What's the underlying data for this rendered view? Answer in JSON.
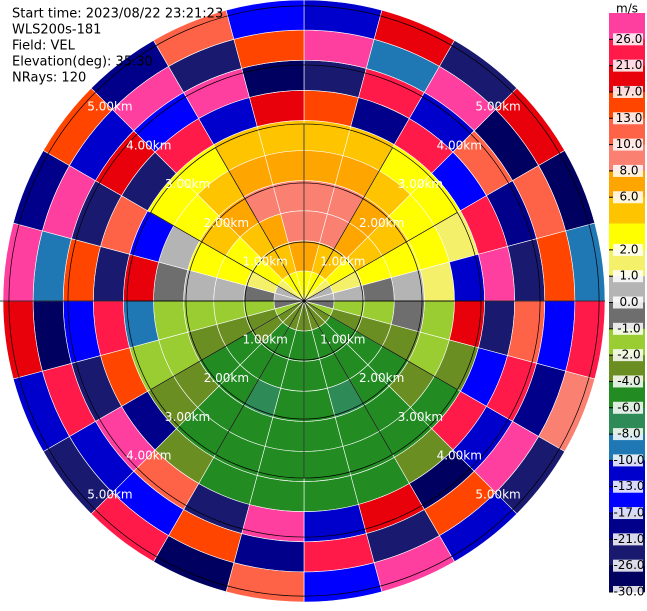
{
  "chart_data": {
    "type": "ppi",
    "info": [
      "Start time: 2023/08/22 23:21:23",
      "WLS200s-181",
      "Field: VEL",
      "Elevation(deg): 35.30",
      "NRays: 120"
    ],
    "rlim": [
      0,
      5.1
    ],
    "range_rings": [
      {
        "value": 1,
        "label": "1.00km"
      },
      {
        "value": 2,
        "label": "2.00km"
      },
      {
        "value": 3,
        "label": "3.00km"
      },
      {
        "value": 4,
        "label": "4.00km"
      },
      {
        "value": 5,
        "label": "5.00km"
      }
    ],
    "values": [
      [
        3,
        7,
        9,
        9,
        7,
        5,
        14,
        -22,
        27,
        -11
      ],
      [
        3,
        5,
        9,
        9,
        7,
        5,
        -19,
        25,
        -9,
        18
      ],
      [
        2.5,
        5,
        7,
        7,
        5,
        3,
        22,
        -13,
        28,
        -24
      ],
      [
        1.5,
        3,
        5,
        5,
        3,
        3,
        -15,
        12,
        -27,
        20
      ],
      [
        0.5,
        1.5,
        3,
        3,
        3,
        1.5,
        24,
        -18,
        11,
        -28
      ],
      [
        0.5,
        0.5,
        -0.5,
        0.5,
        1.5,
        -11,
        27,
        -23,
        16,
        -9
      ],
      [
        -0.5,
        -1.5,
        -1.5,
        -0.5,
        -1.5,
        19,
        -26,
        12,
        -16,
        23
      ],
      [
        -1.5,
        -3,
        -3,
        -3,
        -1.5,
        -3,
        -14,
        25,
        -20,
        9
      ],
      [
        -3,
        -5,
        -5,
        -5,
        -3,
        -5,
        21,
        -12,
        28,
        -25
      ],
      [
        -3,
        -5,
        -5,
        -5,
        -5,
        -5,
        -3,
        -27,
        15,
        -11
      ],
      [
        -3,
        -5,
        -5,
        -7,
        -5,
        -5,
        -5,
        18,
        -23,
        27
      ],
      [
        -3,
        -5,
        -5,
        -5,
        -5,
        -5,
        -5,
        -12,
        24,
        -16
      ],
      [
        -3,
        -5,
        -5,
        -5,
        -5,
        -5,
        -5,
        26,
        -19,
        11
      ],
      [
        -3,
        -5,
        -5,
        -7,
        -5,
        -5,
        -5,
        -24,
        14,
        -28
      ],
      [
        -3,
        -5,
        -5,
        -5,
        -5,
        -5,
        -3,
        12,
        -15,
        22
      ],
      [
        -3,
        -3,
        -5,
        -5,
        -3,
        -3,
        -20,
        27,
        -11,
        -25
      ],
      [
        -1.5,
        -3,
        -3,
        -3,
        -1.5,
        -1.5,
        16,
        -22,
        25,
        -13
      ],
      [
        -0.5,
        -1.5,
        -1.5,
        -1.5,
        -1.5,
        -9,
        24,
        -17,
        -28,
        19
      ],
      [
        0.5,
        -0.5,
        0.5,
        0.5,
        -0.5,
        20,
        -26,
        13,
        -10,
        27
      ],
      [
        0.5,
        1.5,
        3,
        3,
        0.5,
        -14,
        11,
        -23,
        26,
        -18
      ],
      [
        1.5,
        3,
        3,
        5,
        3,
        3,
        -25,
        19,
        -12,
        15
      ],
      [
        2.5,
        5,
        5,
        7,
        5,
        3,
        23,
        -16,
        28,
        -21
      ],
      [
        3,
        5,
        7,
        9,
        7,
        5,
        -11,
        26,
        -24,
        12
      ],
      [
        3,
        7,
        9,
        9,
        7,
        5,
        18,
        -27,
        14,
        -15
      ]
    ],
    "colorbar": {
      "title": "m/s",
      "levels": [
        30,
        26,
        21,
        17,
        13,
        10,
        8,
        6,
        4,
        2,
        1,
        0,
        -1,
        -2,
        -4,
        -6,
        -8,
        -10,
        -13,
        -17,
        -21,
        -26,
        -30
      ],
      "colors": [
        "#ff3fa0",
        "#ff1a4a",
        "#e8000b",
        "#ff4500",
        "#ff6347",
        "#fa8072",
        "#ffa500",
        "#ffc400",
        "#ffff00",
        "#f5f06a",
        "#b4b4b4",
        "#6e6e6e",
        "#9acd32",
        "#6b8e23",
        "#228b22",
        "#2e8b57",
        "#1f77b4",
        "#0000cd",
        "#0000ff",
        "#00008b",
        "#191970",
        "#000060"
      ],
      "ticks": [
        {
          "value": 26,
          "label": "26.0"
        },
        {
          "value": 21,
          "label": "21.0"
        },
        {
          "value": 17,
          "label": "17.0"
        },
        {
          "value": 13,
          "label": "13.0"
        },
        {
          "value": 10,
          "label": "10.0"
        },
        {
          "value": 8,
          "label": "8.0"
        },
        {
          "value": 6,
          "label": "6.0"
        },
        {
          "value": 2,
          "label": "2.0"
        },
        {
          "value": 1,
          "label": "1.0"
        },
        {
          "value": 0,
          "label": "0.0"
        },
        {
          "value": -1,
          "label": "-1.0"
        },
        {
          "value": -2,
          "label": "-2.0"
        },
        {
          "value": -4,
          "label": "-4.0"
        },
        {
          "value": -6,
          "label": "-6.0"
        },
        {
          "value": -8,
          "label": "-8.0"
        },
        {
          "value": -10,
          "label": "-10.0"
        },
        {
          "value": -13,
          "label": "-13.0"
        },
        {
          "value": -17,
          "label": "-17.0"
        },
        {
          "value": -21,
          "label": "-21.0"
        },
        {
          "value": -26,
          "label": "-26.0"
        },
        {
          "value": -30,
          "label": "-30.0"
        }
      ]
    }
  }
}
